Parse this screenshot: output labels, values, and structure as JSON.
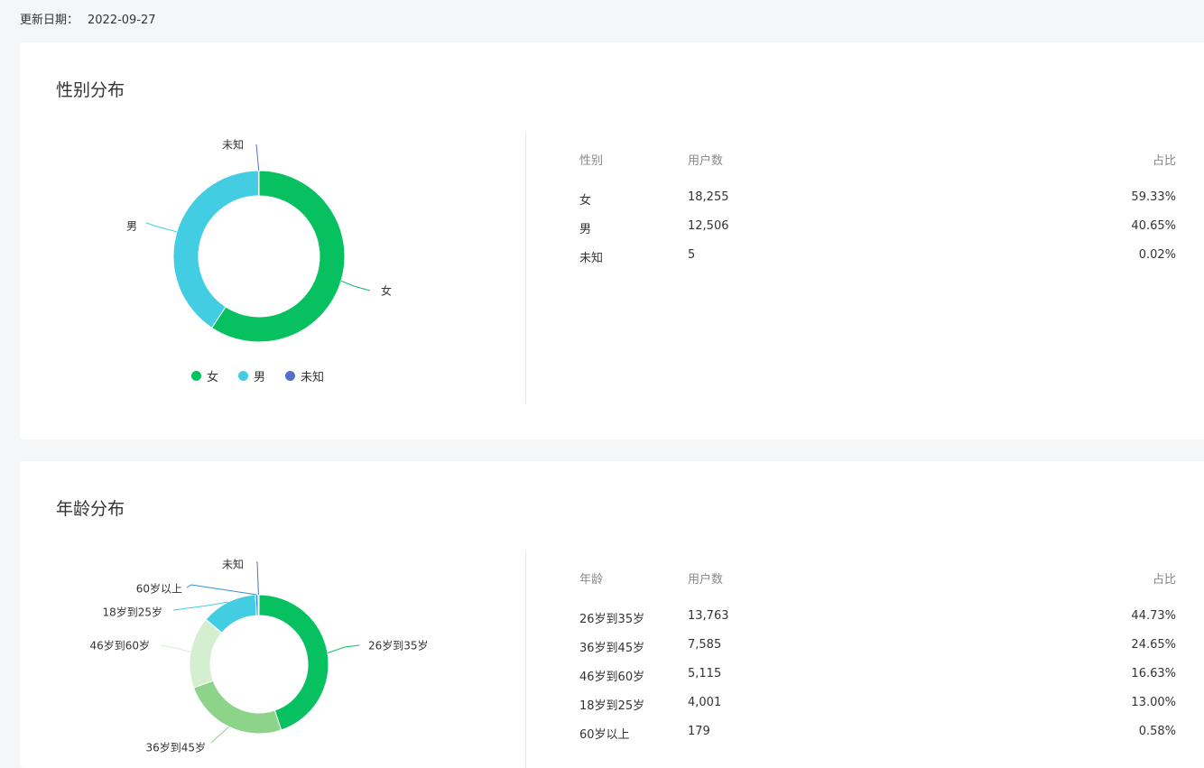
{
  "update": {
    "label": "更新日期：",
    "date": "2022-09-27"
  },
  "gender": {
    "title": "性别分布",
    "table_headers": [
      "性别",
      "用户数",
      "占比"
    ],
    "rows": [
      {
        "label": "女",
        "count": "18,255",
        "pct": "59.33%"
      },
      {
        "label": "男",
        "count": "12,506",
        "pct": "40.65%"
      },
      {
        "label": "未知",
        "count": "5",
        "pct": "0.02%"
      }
    ]
  },
  "age": {
    "title": "年龄分布",
    "table_headers": [
      "年龄",
      "用户数",
      "占比"
    ],
    "rows": [
      {
        "label": "26岁到35岁",
        "count": "13,763",
        "pct": "44.73%"
      },
      {
        "label": "36岁到45岁",
        "count": "7,585",
        "pct": "24.65%"
      },
      {
        "label": "46岁到60岁",
        "count": "5,115",
        "pct": "16.63%"
      },
      {
        "label": "18岁到25岁",
        "count": "4,001",
        "pct": "13.00%"
      },
      {
        "label": "60岁以上",
        "count": "179",
        "pct": "0.58%"
      }
    ]
  },
  "chart_data": [
    {
      "type": "pie",
      "categories": [
        "女",
        "男",
        "未知"
      ],
      "values": [
        18255,
        12506,
        5
      ],
      "colors": [
        "#07c160",
        "#43cde3",
        "#5470c6"
      ],
      "legend": "bottom"
    },
    {
      "type": "pie",
      "categories": [
        "26岁到35岁",
        "36岁到45岁",
        "46岁到60岁",
        "18岁到25岁",
        "60岁以上",
        "未知"
      ],
      "values": [
        13763,
        7585,
        5115,
        4001,
        179,
        5
      ],
      "colors": [
        "#07c160",
        "#8ed38a",
        "#d3efcf",
        "#43cde3",
        "#2e8fd4",
        "#5470c6"
      ]
    }
  ]
}
